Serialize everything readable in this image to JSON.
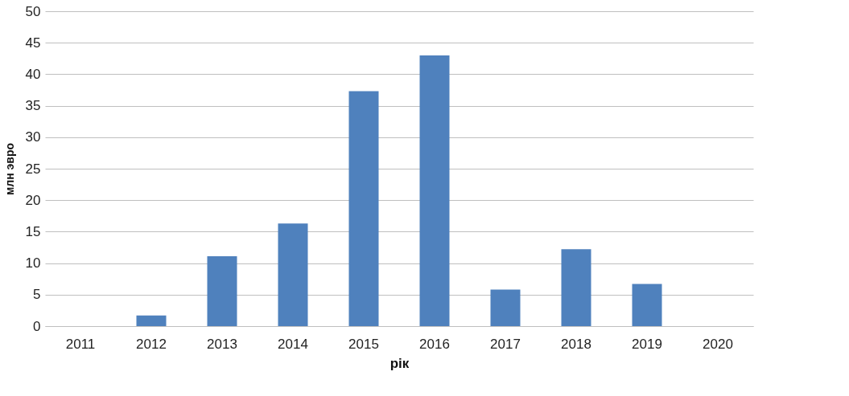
{
  "chart_data": {
    "type": "bar",
    "xlabel": "рік",
    "ylabel": "млн эвро",
    "categories": [
      "2011",
      "2012",
      "2013",
      "2014",
      "2015",
      "2016",
      "2017",
      "2018",
      "2019",
      "2020"
    ],
    "values": [
      0,
      1.7,
      11.1,
      16.3,
      37.3,
      43.0,
      5.8,
      12.2,
      6.7,
      0
    ],
    "color": "#4f81bd",
    "ylim": [
      0,
      50
    ],
    "yticks": [
      0,
      5,
      10,
      15,
      20,
      25,
      30,
      35,
      40,
      45,
      50
    ],
    "grid": "y"
  }
}
